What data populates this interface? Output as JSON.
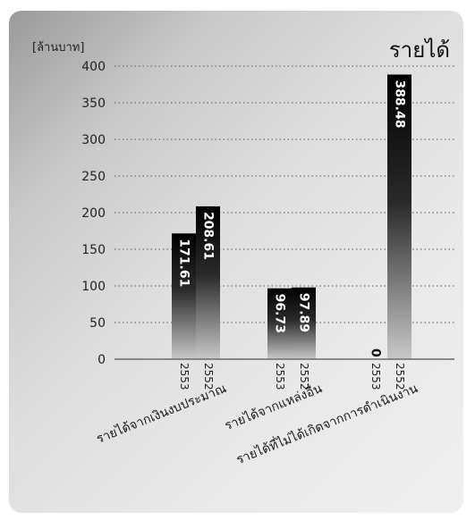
{
  "chart_data": {
    "type": "bar",
    "title": "รายได้",
    "ylabel": "[ล้านบาท]",
    "xlabel": "",
    "ylim": [
      0,
      400
    ],
    "yticks": [
      "400",
      "350",
      "300",
      "250",
      "200",
      "150",
      "100",
      "50",
      "0"
    ],
    "grid": true,
    "groups": [
      {
        "category": "รายได้จากเงินงบประมาณ",
        "bars": [
          {
            "year": "2553",
            "value": 171.61,
            "label": "171.61"
          },
          {
            "year": "2552",
            "value": 208.61,
            "label": "208.61"
          }
        ]
      },
      {
        "category": "รายได้จากแหล่งอื่น",
        "bars": [
          {
            "year": "2553",
            "value": 96.73,
            "label": "96.73"
          },
          {
            "year": "2552",
            "value": 97.89,
            "label": "97.89"
          }
        ]
      },
      {
        "category": "รายได้ที่ไม่ได้เกิดจากการดำเนินงาน",
        "bars": [
          {
            "year": "2553",
            "value": 0,
            "label": "0"
          },
          {
            "year": "2552",
            "value": 388.48,
            "label": "388.48"
          }
        ]
      }
    ],
    "colors": {
      "bar_top": "#000000",
      "bar_bottom": "#c8c8c8",
      "axis": "#6a6a6a",
      "grid": "#707070",
      "bar_label": "#ffffff",
      "year_label": "#222222",
      "zero_label": "#111111"
    }
  }
}
